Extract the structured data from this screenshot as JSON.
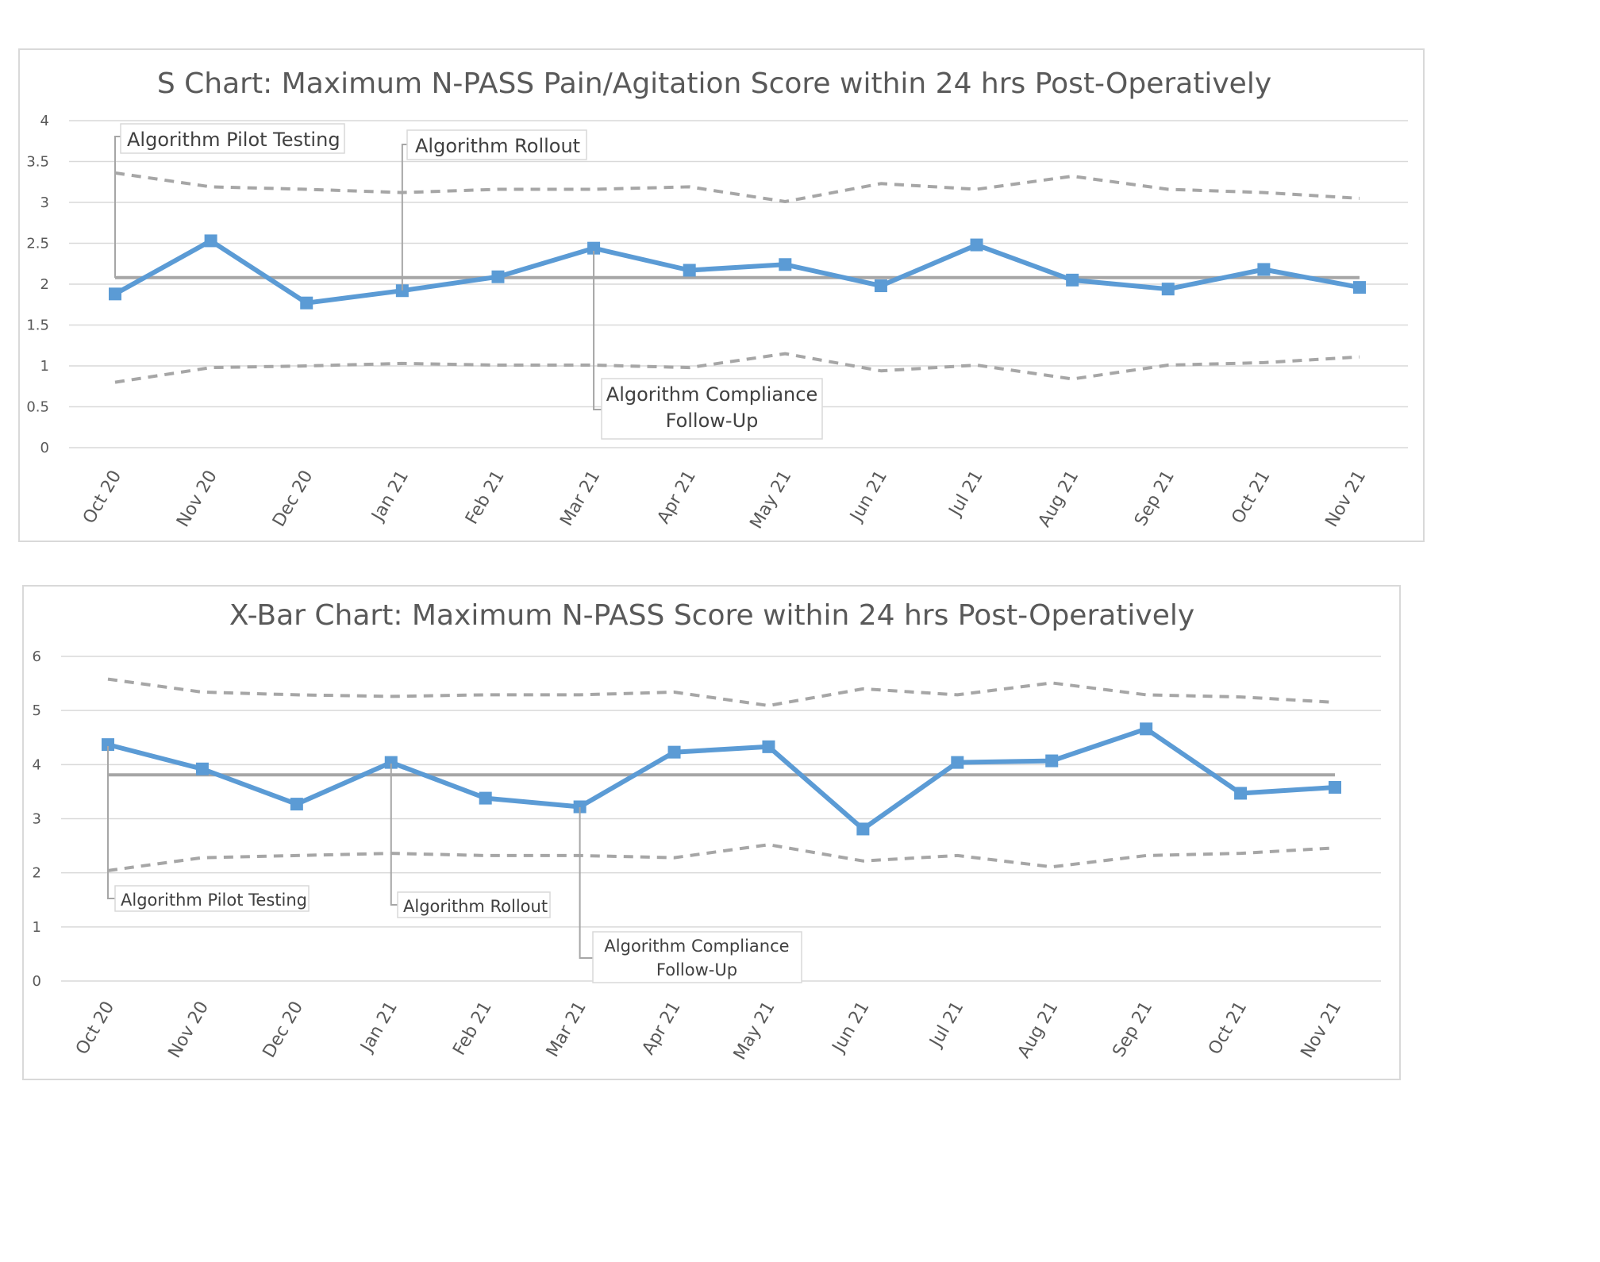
{
  "chart_data": [
    {
      "type": "line",
      "title": "S Chart: Maximum N-PASS Pain/Agitation Score within 24 hrs Post-Operatively",
      "categories": [
        "Oct 20",
        "Nov 20",
        "Dec 20",
        "Jan 21",
        "Feb 21",
        "Mar 21",
        "Apr 21",
        "May 21",
        "Jun 21",
        "Jul 21",
        "Aug 21",
        "Sep 21",
        "Oct 21",
        "Nov 21"
      ],
      "ylim": [
        0,
        4
      ],
      "yticks": [
        "0",
        "0.5",
        "1",
        "1.5",
        "2",
        "2.5",
        "3",
        "3.5",
        "4"
      ],
      "grid": true,
      "series": [
        {
          "key": "main",
          "color": "#5B9BD5",
          "values": [
            1.88,
            2.53,
            1.77,
            1.92,
            2.09,
            2.44,
            2.17,
            2.24,
            1.98,
            2.48,
            2.05,
            1.94,
            2.18,
            1.96
          ]
        },
        {
          "key": "center",
          "color": "#A6A6A6",
          "values": [
            2.08,
            2.08,
            2.08,
            2.08,
            2.08,
            2.08,
            2.08,
            2.08,
            2.08,
            2.08,
            2.08,
            2.08,
            2.08,
            2.08
          ]
        },
        {
          "key": "ucl",
          "color": "#A6A6A6",
          "values": [
            3.36,
            3.19,
            3.16,
            3.12,
            3.16,
            3.16,
            3.19,
            3.01,
            3.23,
            3.16,
            3.32,
            3.16,
            3.12,
            3.05
          ]
        },
        {
          "key": "lcl",
          "color": "#A6A6A6",
          "values": [
            0.8,
            0.98,
            1.0,
            1.03,
            1.01,
            1.01,
            0.98,
            1.15,
            0.94,
            1.01,
            0.84,
            1.01,
            1.04,
            1.11
          ]
        }
      ],
      "annotations": [
        {
          "lines": [
            "Algorithm Pilot Testing"
          ],
          "category_index": 0
        },
        {
          "lines": [
            "Algorithm Rollout"
          ],
          "category_index": 3
        },
        {
          "lines": [
            "Algorithm Compliance",
            "Follow-Up"
          ],
          "category_index": 5
        }
      ]
    },
    {
      "type": "line",
      "title": "X-Bar Chart: Maximum N-PASS Score within 24 hrs Post-Operatively",
      "categories": [
        "Oct 20",
        "Nov 20",
        "Dec 20",
        "Jan 21",
        "Feb 21",
        "Mar 21",
        "Apr 21",
        "May 21",
        "Jun 21",
        "Jul 21",
        "Aug 21",
        "Sep 21",
        "Oct 21",
        "Nov 21"
      ],
      "ylim": [
        0,
        6
      ],
      "yticks": [
        "0",
        "1",
        "2",
        "3",
        "4",
        "5",
        "6"
      ],
      "grid": true,
      "series": [
        {
          "key": "main",
          "color": "#5B9BD5",
          "values": [
            4.37,
            3.92,
            3.27,
            4.04,
            3.38,
            3.22,
            4.23,
            4.33,
            2.81,
            4.04,
            4.07,
            4.66,
            3.47,
            3.58
          ]
        },
        {
          "key": "center",
          "color": "#A6A6A6",
          "values": [
            3.81,
            3.81,
            3.81,
            3.81,
            3.81,
            3.81,
            3.81,
            3.81,
            3.81,
            3.81,
            3.81,
            3.81,
            3.81,
            3.81
          ]
        },
        {
          "key": "ucl",
          "color": "#A6A6A6",
          "values": [
            5.58,
            5.34,
            5.29,
            5.26,
            5.29,
            5.29,
            5.34,
            5.09,
            5.4,
            5.29,
            5.51,
            5.29,
            5.25,
            5.15
          ]
        },
        {
          "key": "lcl",
          "color": "#A6A6A6",
          "values": [
            2.04,
            2.28,
            2.32,
            2.36,
            2.32,
            2.32,
            2.28,
            2.52,
            2.22,
            2.32,
            2.11,
            2.32,
            2.36,
            2.46
          ]
        }
      ],
      "annotations": [
        {
          "lines": [
            "Algorithm Pilot Testing"
          ],
          "category_index": 0
        },
        {
          "lines": [
            "Algorithm Rollout"
          ],
          "category_index": 3
        },
        {
          "lines": [
            "Algorithm Compliance",
            "Follow-Up"
          ],
          "category_index": 5
        }
      ]
    }
  ]
}
